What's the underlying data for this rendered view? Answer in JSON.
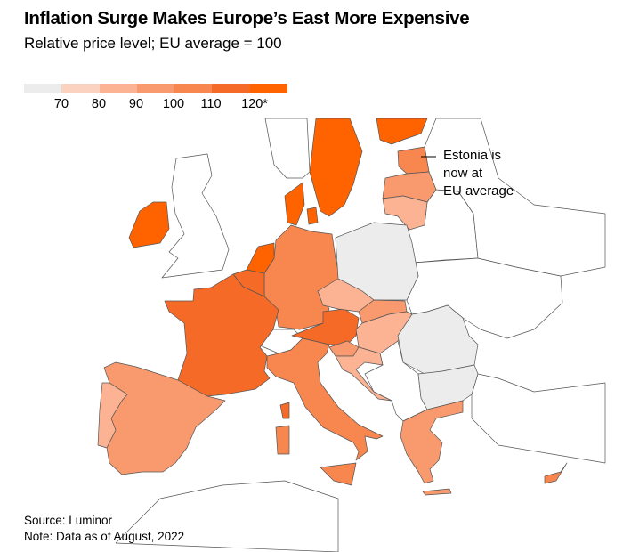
{
  "header": {
    "title": "Inflation Surge Makes Europe’s East More Expensive",
    "subtitle": "Relative price level; EU average = 100"
  },
  "legend": {
    "colors": [
      "#ececec",
      "#fbd2c0",
      "#fbb393",
      "#f99a6e",
      "#f7864f",
      "#f56a27",
      "#ff6300"
    ],
    "labels": [
      "70",
      "80",
      "90",
      "100",
      "110",
      "120*"
    ]
  },
  "regions": {
    "ireland": 6,
    "sweden": 6,
    "finland": 6,
    "denmark": 6,
    "netherlands": 6,
    "belgium": 5,
    "france": 5,
    "austria": 5,
    "germany": 4,
    "italy": 4,
    "estonia": 4,
    "cyprus": 4,
    "spain": 3,
    "latvia": 3,
    "slovakia": 3,
    "slovenia": 3,
    "greece": 3,
    "portugal": 2,
    "lithuania": 2,
    "czechia": 2,
    "hungary": 2,
    "croatia": 2,
    "poland": 0,
    "romania": 0,
    "bulgaria": 0
  },
  "annotation": {
    "lines": [
      "Estonia is",
      "now at",
      "EU average"
    ]
  },
  "footer": {
    "source": "Source: Luminor",
    "note": "Note: Data as of August, 2022"
  }
}
